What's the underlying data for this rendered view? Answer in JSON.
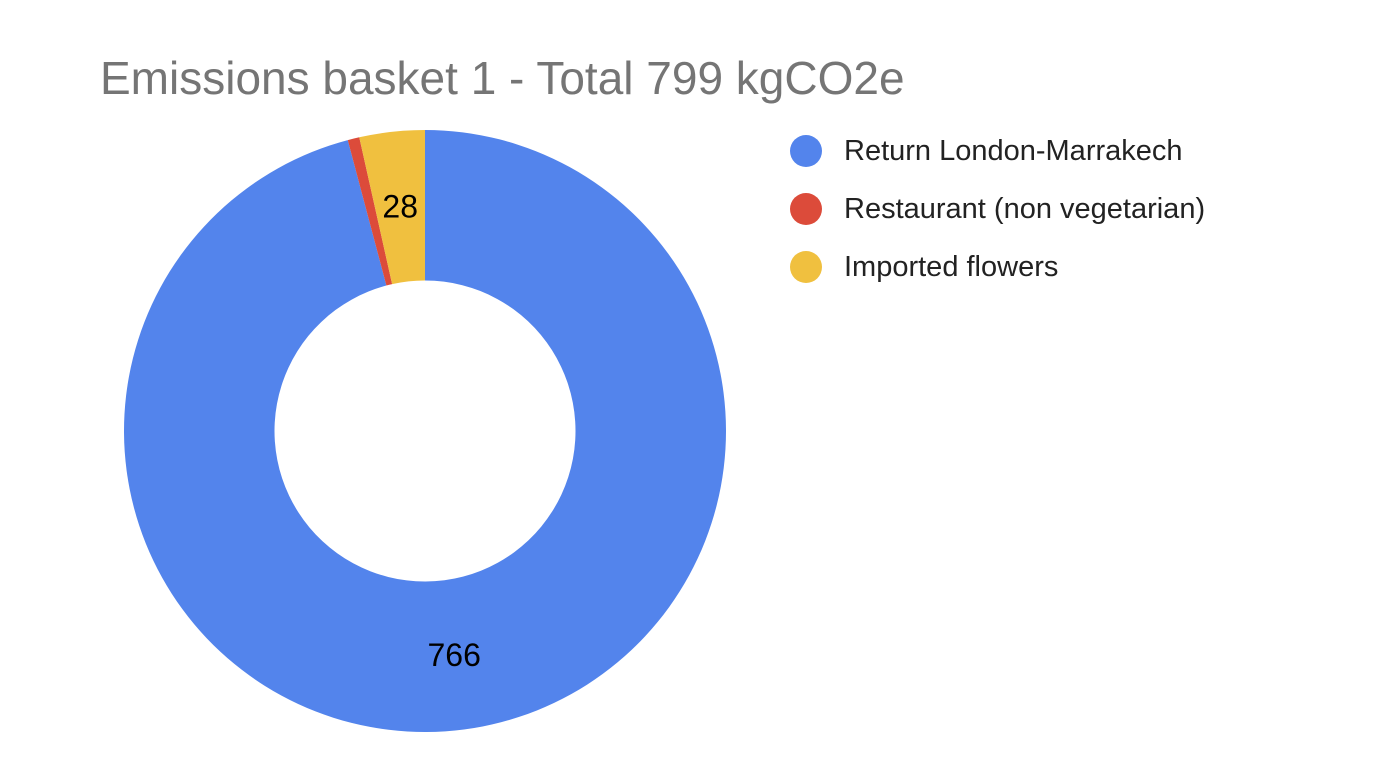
{
  "chart_data": {
    "type": "pie",
    "title": "Emissions basket 1 - Total 799 kgCO2e",
    "hole": 0.5,
    "legend_position": "right",
    "series": [
      {
        "name": "Return London-Marrakech",
        "value": 766,
        "color": "#5384EC",
        "data_label": "766"
      },
      {
        "name": "Restaurant (non vegetarian)",
        "value": 5,
        "color": "#DC4B3A",
        "data_label": ""
      },
      {
        "name": "Imported flowers",
        "value": 28,
        "color": "#F0C03F",
        "data_label": "28"
      }
    ]
  }
}
